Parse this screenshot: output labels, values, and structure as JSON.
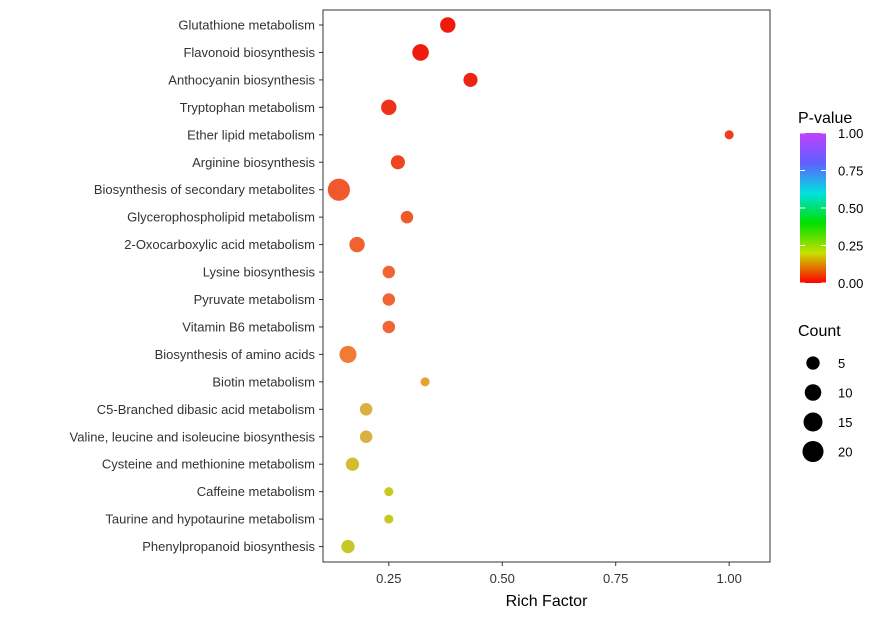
{
  "chart_data": {
    "type": "scatter",
    "xlabel": "Rich Factor",
    "ylabel": "",
    "xlim": [
      0.105,
      1.09
    ],
    "x_ticks": [
      0.25,
      0.5,
      0.75,
      1.0
    ],
    "x_tick_labels": [
      "0.25",
      "0.50",
      "0.75",
      "1.00"
    ],
    "grid": false,
    "legend_position": "right",
    "color_legend": {
      "title": "P-value",
      "ticks": [
        "1.00",
        "0.75",
        "0.50",
        "0.25",
        "0.00"
      ],
      "range": [
        0,
        1
      ],
      "colors": [
        "#ff0000",
        "#c8e000",
        "#00e000",
        "#00e0e0",
        "#6060ff",
        "#c040ff"
      ]
    },
    "size_legend": {
      "title": "Count",
      "values": [
        5,
        10,
        15,
        20
      ],
      "labels": [
        "5",
        "10",
        "15",
        "20"
      ]
    },
    "categories": [
      "Glutathione metabolism",
      "Flavonoid biosynthesis",
      "Anthocyanin biosynthesis",
      "Tryptophan metabolism",
      "Ether lipid metabolism",
      "Arginine biosynthesis",
      "Biosynthesis of secondary metabolites",
      "Glycerophospholipid metabolism",
      "2-Oxocarboxylic acid metabolism",
      "Lysine biosynthesis",
      "Pyruvate metabolism",
      "Vitamin B6 metabolism",
      "Biosynthesis of amino acids",
      "Biotin metabolism",
      "C5-Branched dibasic acid metabolism",
      "Valine, leucine and isoleucine biosynthesis",
      "Cysteine and methionine metabolism",
      "Caffeine metabolism",
      "Taurine and hypotaurine metabolism",
      "Phenylpropanoid biosynthesis"
    ],
    "points": [
      {
        "pathway": "Glutathione metabolism",
        "rich_factor": 0.38,
        "count": 8,
        "p_value": 0.01,
        "color": "#ee1a0c"
      },
      {
        "pathway": "Flavonoid biosynthesis",
        "rich_factor": 0.32,
        "count": 10,
        "p_value": 0.01,
        "color": "#ee1c0e"
      },
      {
        "pathway": "Anthocyanin biosynthesis",
        "rich_factor": 0.43,
        "count": 6,
        "p_value": 0.02,
        "color": "#ee2412"
      },
      {
        "pathway": "Tryptophan metabolism",
        "rich_factor": 0.25,
        "count": 8,
        "p_value": 0.04,
        "color": "#ee3218"
      },
      {
        "pathway": "Ether lipid metabolism",
        "rich_factor": 1.0,
        "count": 1,
        "p_value": 0.05,
        "color": "#ee3e1c"
      },
      {
        "pathway": "Arginine biosynthesis",
        "rich_factor": 0.27,
        "count": 6,
        "p_value": 0.06,
        "color": "#ef4420"
      },
      {
        "pathway": "Biosynthesis of secondary metabolites",
        "rich_factor": 0.14,
        "count": 23,
        "p_value": 0.07,
        "color": "#f0582e"
      },
      {
        "pathway": "Glycerophospholipid metabolism",
        "rich_factor": 0.29,
        "count": 4,
        "p_value": 0.08,
        "color": "#f05a2a"
      },
      {
        "pathway": "2-Oxocarboxylic acid metabolism",
        "rich_factor": 0.18,
        "count": 8,
        "p_value": 0.09,
        "color": "#f2622e"
      },
      {
        "pathway": "Lysine biosynthesis",
        "rich_factor": 0.25,
        "count": 4,
        "p_value": 0.11,
        "color": "#f26434"
      },
      {
        "pathway": "Pyruvate metabolism",
        "rich_factor": 0.25,
        "count": 4,
        "p_value": 0.11,
        "color": "#f26434"
      },
      {
        "pathway": "Vitamin B6 metabolism",
        "rich_factor": 0.25,
        "count": 4,
        "p_value": 0.11,
        "color": "#f26434"
      },
      {
        "pathway": "Biosynthesis of amino acids",
        "rich_factor": 0.16,
        "count": 11,
        "p_value": 0.13,
        "color": "#f07b32"
      },
      {
        "pathway": "Biotin metabolism",
        "rich_factor": 0.33,
        "count": 1,
        "p_value": 0.2,
        "color": "#e8a030"
      },
      {
        "pathway": "C5-Branched dibasic acid metabolism",
        "rich_factor": 0.2,
        "count": 4,
        "p_value": 0.22,
        "color": "#dab040"
      },
      {
        "pathway": "Valine, leucine and isoleucine biosynthesis",
        "rich_factor": 0.2,
        "count": 4,
        "p_value": 0.22,
        "color": "#dab040"
      },
      {
        "pathway": "Cysteine and methionine metabolism",
        "rich_factor": 0.17,
        "count": 5,
        "p_value": 0.28,
        "color": "#cfbf30"
      },
      {
        "pathway": "Caffeine metabolism",
        "rich_factor": 0.25,
        "count": 1,
        "p_value": 0.3,
        "color": "#c8c820"
      },
      {
        "pathway": "Taurine and hypotaurine metabolism",
        "rich_factor": 0.25,
        "count": 1,
        "p_value": 0.3,
        "color": "#c8c820"
      },
      {
        "pathway": "Phenylpropanoid biosynthesis",
        "rich_factor": 0.16,
        "count": 5,
        "p_value": 0.3,
        "color": "#c4c82a"
      }
    ]
  }
}
